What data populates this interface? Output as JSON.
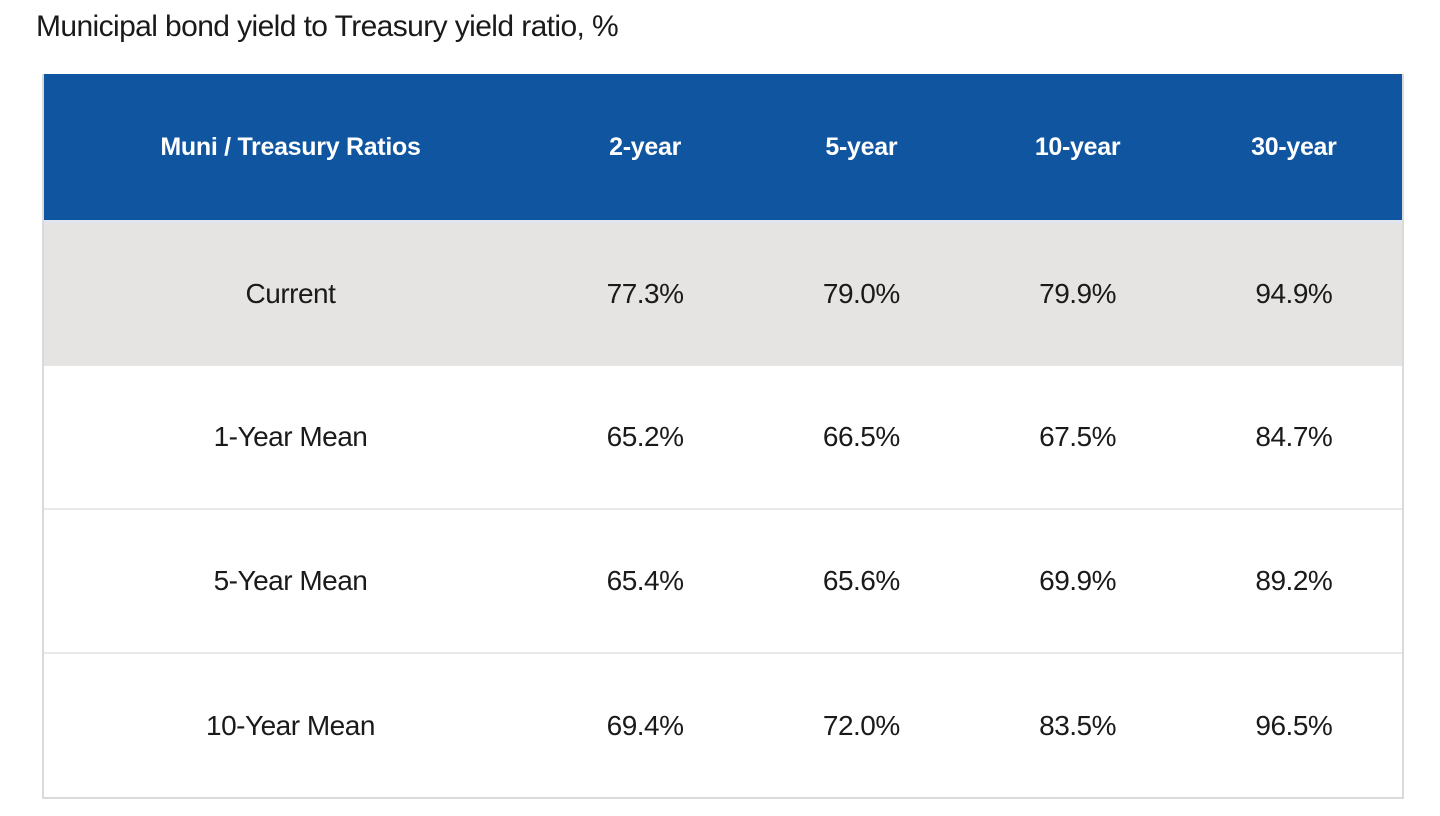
{
  "page": {
    "title": "Municipal bond yield to Treasury yield ratio, %"
  },
  "colors": {
    "header_bg": "#0f55a0",
    "header_text": "#ffffff",
    "highlight_row_bg": "#e5e4e2",
    "row_separator": "#e9e9e9",
    "table_border": "#dadada",
    "body_text": "#1a1a1a",
    "page_bg": "#ffffff"
  },
  "chart_data": {
    "type": "table",
    "title": "Municipal bond yield to Treasury yield ratio, %",
    "columns": [
      "Muni / Treasury Ratios",
      "2-year",
      "5-year",
      "10-year",
      "30-year"
    ],
    "rows": [
      {
        "label": "Current",
        "values": [
          "77.3%",
          "79.0%",
          "79.9%",
          "94.9%"
        ],
        "highlighted": true
      },
      {
        "label": "1-Year Mean",
        "values": [
          "65.2%",
          "66.5%",
          "67.5%",
          "84.7%"
        ],
        "highlighted": false
      },
      {
        "label": "5-Year Mean",
        "values": [
          "65.4%",
          "65.6%",
          "69.9%",
          "89.2%"
        ],
        "highlighted": false
      },
      {
        "label": "10-Year Mean",
        "values": [
          "69.4%",
          "72.0%",
          "83.5%",
          "96.5%"
        ],
        "highlighted": false
      }
    ]
  }
}
